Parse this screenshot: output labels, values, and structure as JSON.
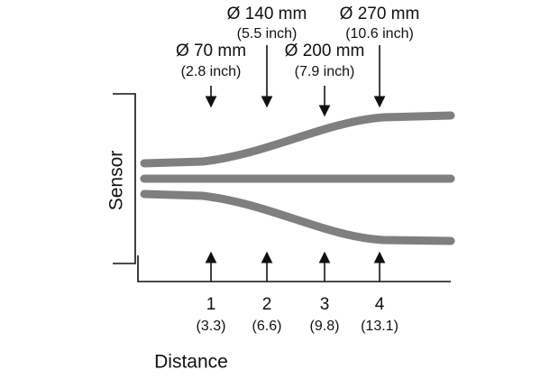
{
  "top_labels": [
    {
      "mm": "Ø 70 mm",
      "inch": "(2.8 inch)"
    },
    {
      "mm": "Ø 140 mm",
      "inch": "(5.5 inch)"
    },
    {
      "mm": "Ø 200 mm",
      "inch": "(7.9 inch)"
    },
    {
      "mm": "Ø 270 mm",
      "inch": "(10.6 inch)"
    }
  ],
  "sensor": "Sensor",
  "distances": [
    {
      "m": "1",
      "ft": "(3.3)"
    },
    {
      "m": "2",
      "ft": "(6.6)"
    },
    {
      "m": "3",
      "ft": "(9.8)"
    },
    {
      "m": "4",
      "ft": "(13.1)"
    }
  ],
  "distance_label": "Distance"
}
